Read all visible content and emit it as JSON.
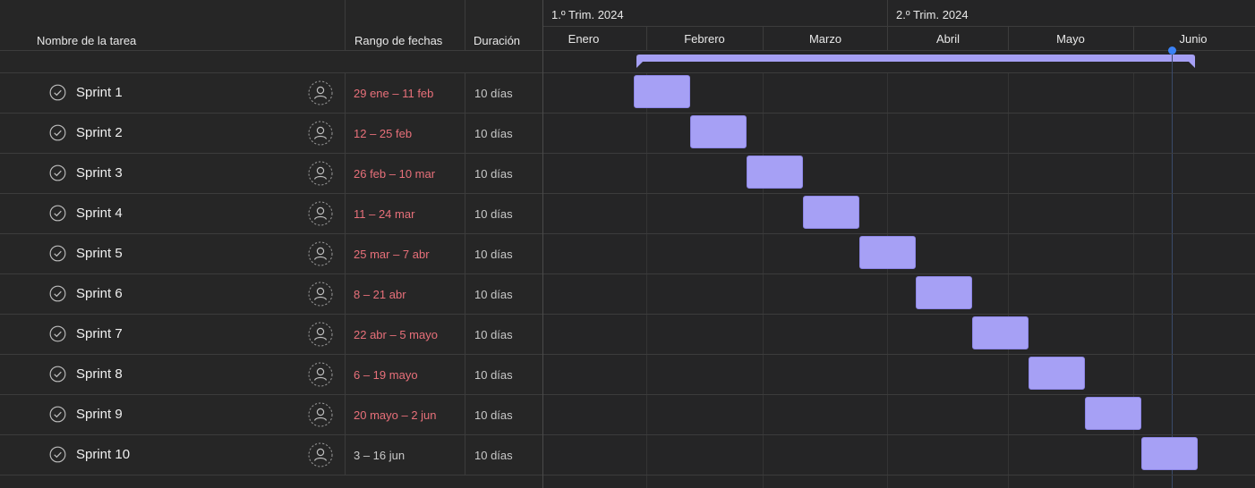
{
  "columns": {
    "task_name": "Nombre de la tarea",
    "date_range": "Rango de fechas",
    "duration": "Duración"
  },
  "timeline": {
    "quarters": [
      "1.º Trim. 2024",
      "2.º Trim. 2024"
    ],
    "months": [
      "Enero",
      "Febrero",
      "Marzo",
      "Abril",
      "Mayo",
      "Junio"
    ]
  },
  "colors": {
    "bar": "#a6a0f5",
    "summary_bar": "#a6a0f5",
    "today_marker": "#3b82f6",
    "date_range_text": "#e8707a",
    "background": "#252526"
  },
  "tasks": [
    {
      "name": "Sprint 1",
      "range": "29 ene – 11 feb",
      "duration": "10 días",
      "range_highlight": true
    },
    {
      "name": "Sprint 2",
      "range": "12 – 25 feb",
      "duration": "10 días",
      "range_highlight": true
    },
    {
      "name": "Sprint 3",
      "range": "26 feb – 10 mar",
      "duration": "10 días",
      "range_highlight": true
    },
    {
      "name": "Sprint 4",
      "range": "11 – 24 mar",
      "duration": "10 días",
      "range_highlight": true
    },
    {
      "name": "Sprint 5",
      "range": "25 mar – 7 abr",
      "duration": "10 días",
      "range_highlight": true
    },
    {
      "name": "Sprint 6",
      "range": "8 – 21 abr",
      "duration": "10 días",
      "range_highlight": true
    },
    {
      "name": "Sprint 7",
      "range": "22 abr – 5 mayo",
      "duration": "10 días",
      "range_highlight": true
    },
    {
      "name": "Sprint 8",
      "range": "6 – 19 mayo",
      "duration": "10 días",
      "range_highlight": true
    },
    {
      "name": "Sprint 9",
      "range": "20 mayo – 2 jun",
      "duration": "10 días",
      "range_highlight": true
    },
    {
      "name": "Sprint 10",
      "range": "3 – 16 jun",
      "duration": "10 días",
      "range_highlight": false
    }
  ],
  "icons": {
    "task_status": "check-circle-icon",
    "assignee": "person-icon"
  }
}
